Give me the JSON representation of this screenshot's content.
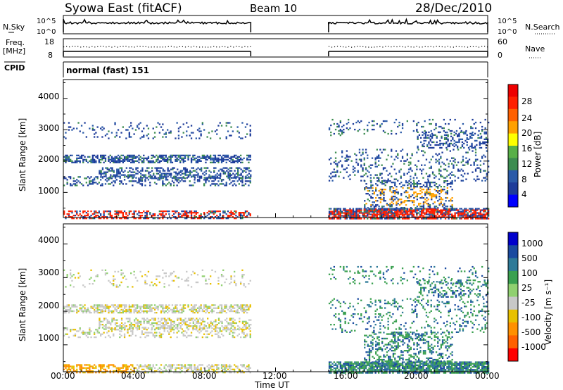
{
  "header": {
    "title": "Syowa East (fitACF)",
    "beam": "Beam 10",
    "date": "28/Dec/2010"
  },
  "top_panels": {
    "nsky_label": "N.Sky",
    "nsky_ticks": [
      "10^5",
      "10^0"
    ],
    "nsearch_label": "N.Search",
    "freq_label_line1": "Freq.",
    "freq_label_line2": "[MHz]",
    "freq_ticks": [
      "18",
      "8"
    ],
    "nave_label": "Nave",
    "nave_ticks": [
      "60",
      "0"
    ],
    "cpid_label": "CPID",
    "cpid_value": "normal (fast) 151"
  },
  "x_axis": {
    "label": "Time UT",
    "ticks": [
      "00:00",
      "04:00",
      "08:00",
      "12:00",
      "16:00",
      "20:00",
      "00:00"
    ],
    "range_hours": [
      0,
      24
    ]
  },
  "colors": {
    "power_scale": [
      "#0000ff",
      "#1e3c9a",
      "#2a5aa8",
      "#3c8c50",
      "#58b048",
      "#ffff00",
      "#ffa000",
      "#ff6000",
      "#ff2000",
      "#ee0000"
    ],
    "velocity_scale": [
      "#0000cc",
      "#1a4aa0",
      "#2e7a98",
      "#3aa050",
      "#90d070",
      "#c8c8c8",
      "#e8c000",
      "#ff9000",
      "#ff6000",
      "#ff0000"
    ]
  },
  "chart_data": [
    {
      "type": "heatmap",
      "panel": "power",
      "ylabel": "Slant Range [km]",
      "yticks": [
        "1000",
        "2000",
        "3000",
        "4000"
      ],
      "ylim": [
        200,
        4600
      ],
      "xlim": [
        0,
        24
      ],
      "colorbar_label": "Power [dB]",
      "colorbar_ticks": [
        "28",
        "24",
        "20",
        "16",
        "12",
        "8",
        "4"
      ],
      "data_gaps_hours": [
        [
          10.6,
          15.0
        ]
      ]
    },
    {
      "type": "heatmap",
      "panel": "velocity",
      "ylabel": "Slant Range [km]",
      "yticks": [
        "1000",
        "2000",
        "3000",
        "4000"
      ],
      "ylim": [
        200,
        4600
      ],
      "xlim": [
        0,
        24
      ],
      "colorbar_label": "Velocity [m s⁻¹]",
      "colorbar_ticks": [
        "1000",
        "500",
        "100",
        "25",
        "-25",
        "-100",
        "-500",
        "-1000"
      ],
      "data_gaps_hours": [
        [
          10.6,
          15.0
        ]
      ]
    }
  ]
}
